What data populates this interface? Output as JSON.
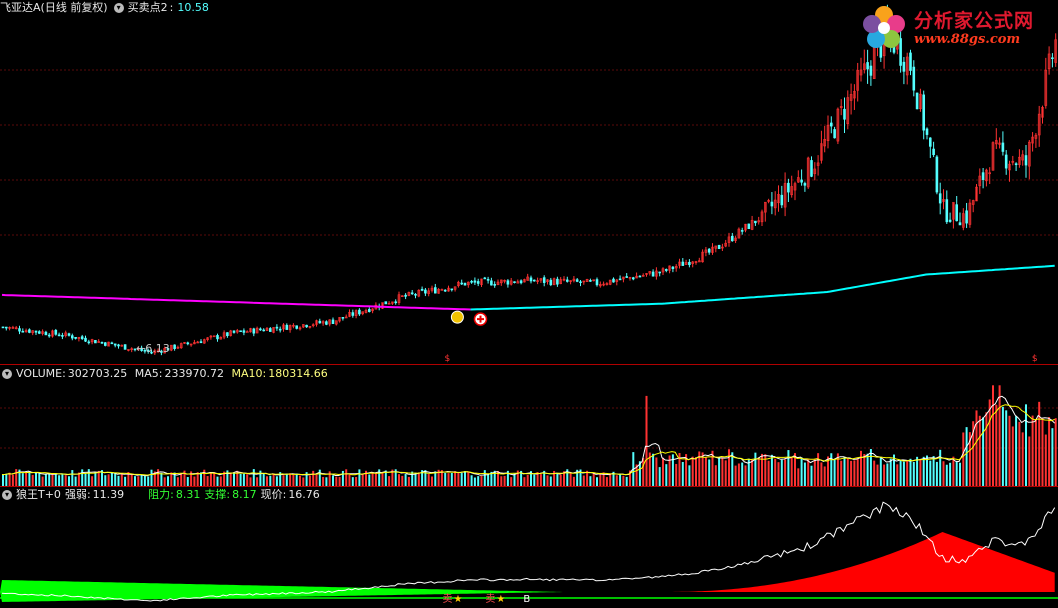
{
  "main_panel": {
    "title": "飞亚达A(日线 前复权)",
    "indicator_label": "买卖点2",
    "indicator_value": "10.58",
    "low_marker": "6.13"
  },
  "volume_panel": {
    "label": "VOLUME",
    "value": "302703.25",
    "ma5_label": "MA5",
    "ma5_value": "233970.72",
    "ma10_label": "MA10",
    "ma10_value": "180314.66"
  },
  "wolf_panel": {
    "title": "狼王T+0",
    "strength_label": "强弱",
    "strength_value": "11.39",
    "resistance_label": "阻力",
    "resistance_value": "8.31",
    "support_label": "支撑",
    "support_value": "8.17",
    "price_label": "现价",
    "price_value": "16.76",
    "sell_marker": "卖",
    "buy_marker": "B"
  },
  "logo": {
    "name": "分析家公式网",
    "url": "www.88gs.com"
  },
  "colors": {
    "up": "#ff3232",
    "down": "#54ffff",
    "ma_long_before": "#ff00ff",
    "ma_long_after": "#00ffff",
    "ma5": "#ffffff",
    "ma10": "#ffff00",
    "area_positive": "#ff0000",
    "area_negative": "#00ff00"
  },
  "chart_data": [
    {
      "type": "candlestick",
      "title": "飞亚达A(日线 前复权)",
      "price_range": [
        5.8,
        17.6
      ],
      "key_prices": {
        "low": 6.13,
        "high": 17.1,
        "last": 16.76
      },
      "trend_points": [
        {
          "bar": 0,
          "price": 7.0
        },
        {
          "bar": 20,
          "price": 6.7
        },
        {
          "bar": 45,
          "price": 6.13
        },
        {
          "bar": 70,
          "price": 6.8
        },
        {
          "bar": 100,
          "price": 7.2
        },
        {
          "bar": 120,
          "price": 8.0
        },
        {
          "bar": 140,
          "price": 8.5
        },
        {
          "bar": 160,
          "price": 8.6
        },
        {
          "bar": 180,
          "price": 8.5
        },
        {
          "bar": 200,
          "price": 8.9
        },
        {
          "bar": 215,
          "price": 9.6
        },
        {
          "bar": 230,
          "price": 10.8
        },
        {
          "bar": 245,
          "price": 12.5
        },
        {
          "bar": 260,
          "price": 15.5
        },
        {
          "bar": 268,
          "price": 17.1
        },
        {
          "bar": 275,
          "price": 16.0
        },
        {
          "bar": 285,
          "price": 11.0
        },
        {
          "bar": 292,
          "price": 10.8
        },
        {
          "bar": 300,
          "price": 13.0
        },
        {
          "bar": 310,
          "price": 12.6
        },
        {
          "bar": 319,
          "price": 16.76
        }
      ],
      "long_ma": {
        "color_switch_bar": 142,
        "points": [
          {
            "bar": 0,
            "price": 8.1
          },
          {
            "bar": 142,
            "price": 7.6
          },
          {
            "bar": 200,
            "price": 7.8
          },
          {
            "bar": 250,
            "price": 8.2
          },
          {
            "bar": 280,
            "price": 8.8
          },
          {
            "bar": 319,
            "price": 9.1
          }
        ]
      }
    },
    {
      "type": "bar",
      "title": "VOLUME",
      "last_value": 302703.25,
      "ma5": 233970.72,
      "ma10": 180314.66
    },
    {
      "type": "area",
      "title": "狼王T+0",
      "strength": 11.39,
      "resistance": 8.31,
      "support": 8.17,
      "price": 16.76
    }
  ]
}
